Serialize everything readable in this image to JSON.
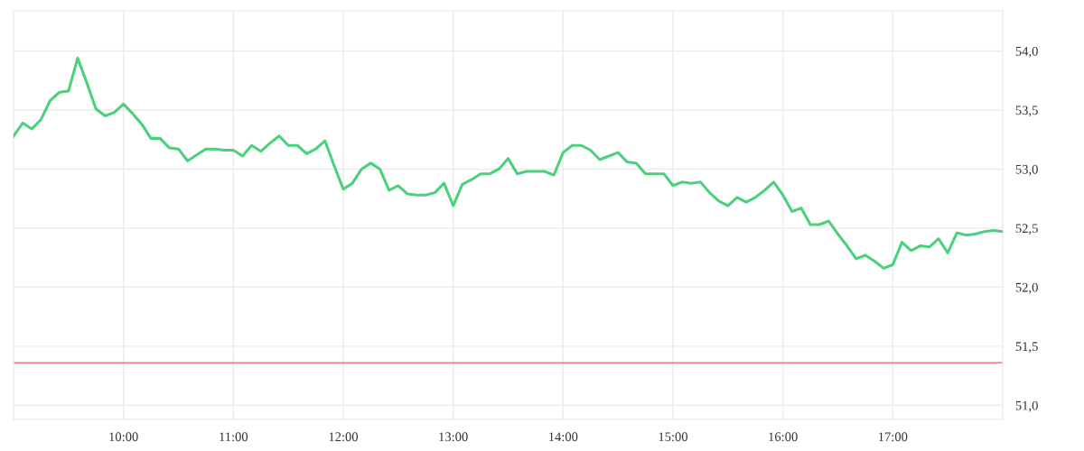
{
  "chart_data": {
    "type": "line",
    "x": [
      9,
      9.0833,
      9.1667,
      9.25,
      9.3333,
      9.4167,
      9.5,
      9.5833,
      9.6667,
      9.75,
      9.8333,
      9.9167,
      10,
      10.0833,
      10.1667,
      10.25,
      10.3333,
      10.4167,
      10.5,
      10.5833,
      10.6667,
      10.75,
      10.8333,
      10.9167,
      11,
      11.0833,
      11.1667,
      11.25,
      11.3333,
      11.4167,
      11.5,
      11.5833,
      11.6667,
      11.75,
      11.8333,
      11.9167,
      12,
      12.0833,
      12.1667,
      12.25,
      12.3333,
      12.4167,
      12.5,
      12.5833,
      12.6667,
      12.75,
      12.8333,
      12.9167,
      13,
      13.0833,
      13.1667,
      13.25,
      13.3333,
      13.4167,
      13.5,
      13.5833,
      13.6667,
      13.75,
      13.8333,
      13.9167,
      14,
      14.0833,
      14.1667,
      14.25,
      14.3333,
      14.4167,
      14.5,
      14.5833,
      14.6667,
      14.75,
      14.8333,
      14.9167,
      15,
      15.0833,
      15.1667,
      15.25,
      15.3333,
      15.4167,
      15.5,
      15.5833,
      15.6667,
      15.75,
      15.8333,
      15.9167,
      16,
      16.0833,
      16.1667,
      16.25,
      16.3333,
      16.4167,
      16.5,
      16.5833,
      16.6667,
      16.75,
      16.8333,
      16.9167,
      17,
      17.0833,
      17.1667,
      17.25,
      17.3333,
      17.4167,
      17.5,
      17.5833,
      17.6667,
      17.75,
      17.8333,
      17.9167,
      18
    ],
    "series": [
      {
        "color": "#4cd07d",
        "values": [
          53.28,
          53.39,
          53.34,
          53.42,
          53.58,
          53.65,
          53.66,
          53.94,
          53.73,
          53.51,
          53.45,
          53.48,
          53.55,
          53.47,
          53.38,
          53.26,
          53.26,
          53.18,
          53.17,
          53.07,
          53.12,
          53.17,
          53.17,
          53.16,
          53.16,
          53.11,
          53.2,
          53.15,
          53.22,
          53.28,
          53.2,
          53.2,
          53.13,
          53.17,
          53.24,
          53.03,
          52.83,
          52.88,
          53.0,
          53.05,
          53.0,
          52.82,
          52.86,
          52.79,
          52.78,
          52.78,
          52.8,
          52.88,
          52.69,
          52.87,
          52.91,
          52.96,
          52.96,
          53.0,
          53.09,
          52.96,
          52.98,
          52.98,
          52.98,
          52.95,
          53.14,
          53.2,
          53.2,
          53.16,
          53.08,
          53.11,
          53.14,
          53.06,
          53.05,
          52.96,
          52.96,
          52.96,
          52.86,
          52.89,
          52.88,
          52.89,
          52.8,
          52.73,
          52.69,
          52.76,
          52.72,
          52.76,
          52.82,
          52.89,
          52.78,
          52.64,
          52.67,
          52.53,
          52.53,
          52.56,
          52.45,
          52.35,
          52.24,
          52.27,
          52.22,
          52.16,
          52.19,
          52.38,
          52.31,
          52.35,
          52.34,
          52.41,
          52.29,
          52.46,
          52.44,
          52.45,
          52.47,
          52.48,
          52.47
        ]
      }
    ],
    "xlim": [
      9,
      18
    ],
    "xticks": [
      {
        "value": 10,
        "label": "10:00"
      },
      {
        "value": 11,
        "label": "11:00"
      },
      {
        "value": 12,
        "label": "12:00"
      },
      {
        "value": 13,
        "label": "13:00"
      },
      {
        "value": 14,
        "label": "14:00"
      },
      {
        "value": 15,
        "label": "15:00"
      },
      {
        "value": 16,
        "label": "16:00"
      },
      {
        "value": 17,
        "label": "17:00"
      }
    ],
    "ylim": [
      50.88,
      54.34
    ],
    "yticks": [
      {
        "value": 51.0,
        "label": "51,0"
      },
      {
        "value": 51.5,
        "label": "51,5"
      },
      {
        "value": 52.0,
        "label": "52,0"
      },
      {
        "value": 52.5,
        "label": "52,5"
      },
      {
        "value": 53.0,
        "label": "53,0"
      },
      {
        "value": 53.5,
        "label": "53,5"
      },
      {
        "value": 54.0,
        "label": "54,0"
      }
    ],
    "ref_lines": [
      {
        "axis": "y",
        "value": 51.36,
        "color": "#ff5a5a"
      }
    ],
    "grid": true,
    "marker": "none",
    "line_style": "solid"
  }
}
